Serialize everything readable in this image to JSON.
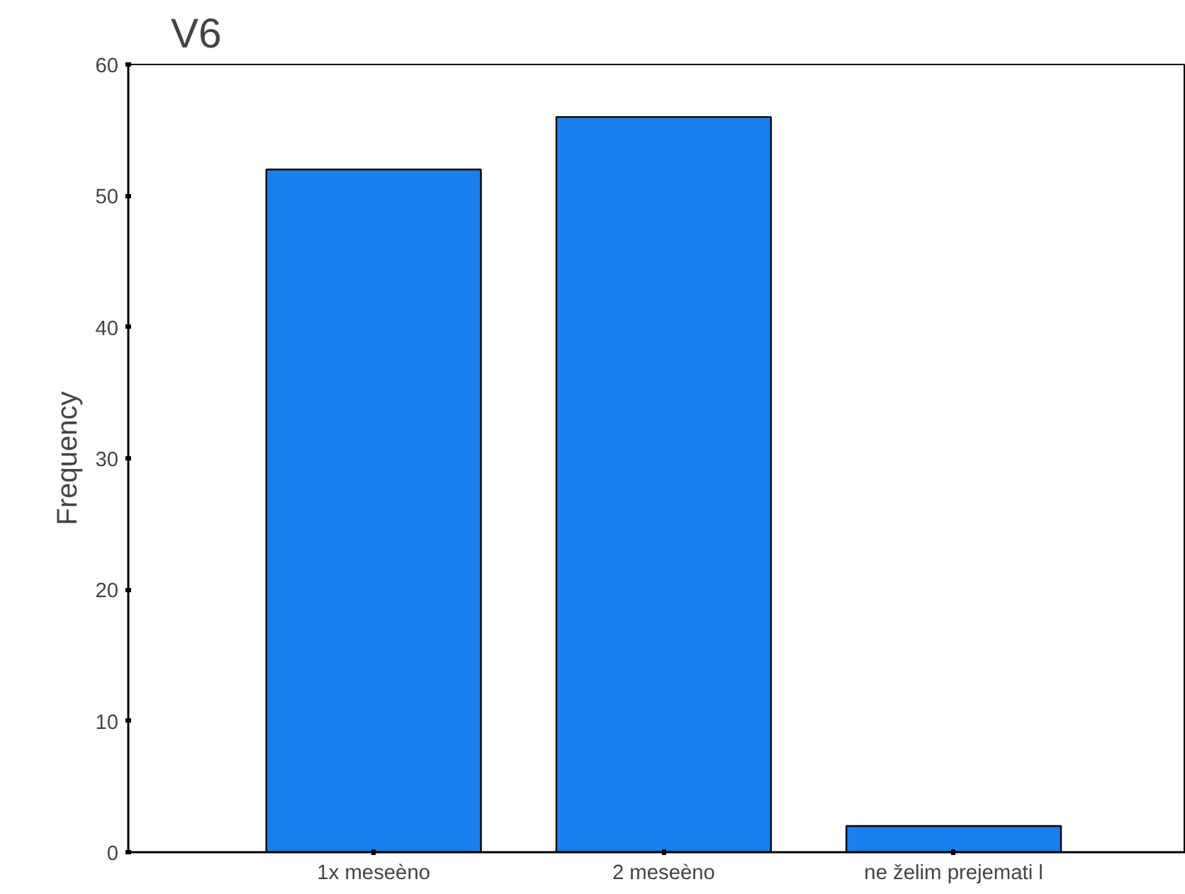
{
  "chart_data": {
    "type": "bar",
    "title": "V6",
    "ylabel": "Frequency",
    "categories": [
      "1x meseèno",
      "2 meseèno",
      "ne želim prejemati l"
    ],
    "values": [
      52,
      56,
      2
    ],
    "color": "#1a80ee",
    "ylim": [
      0,
      60
    ],
    "yticks": [
      0,
      10,
      20,
      30,
      40,
      50,
      60
    ]
  }
}
